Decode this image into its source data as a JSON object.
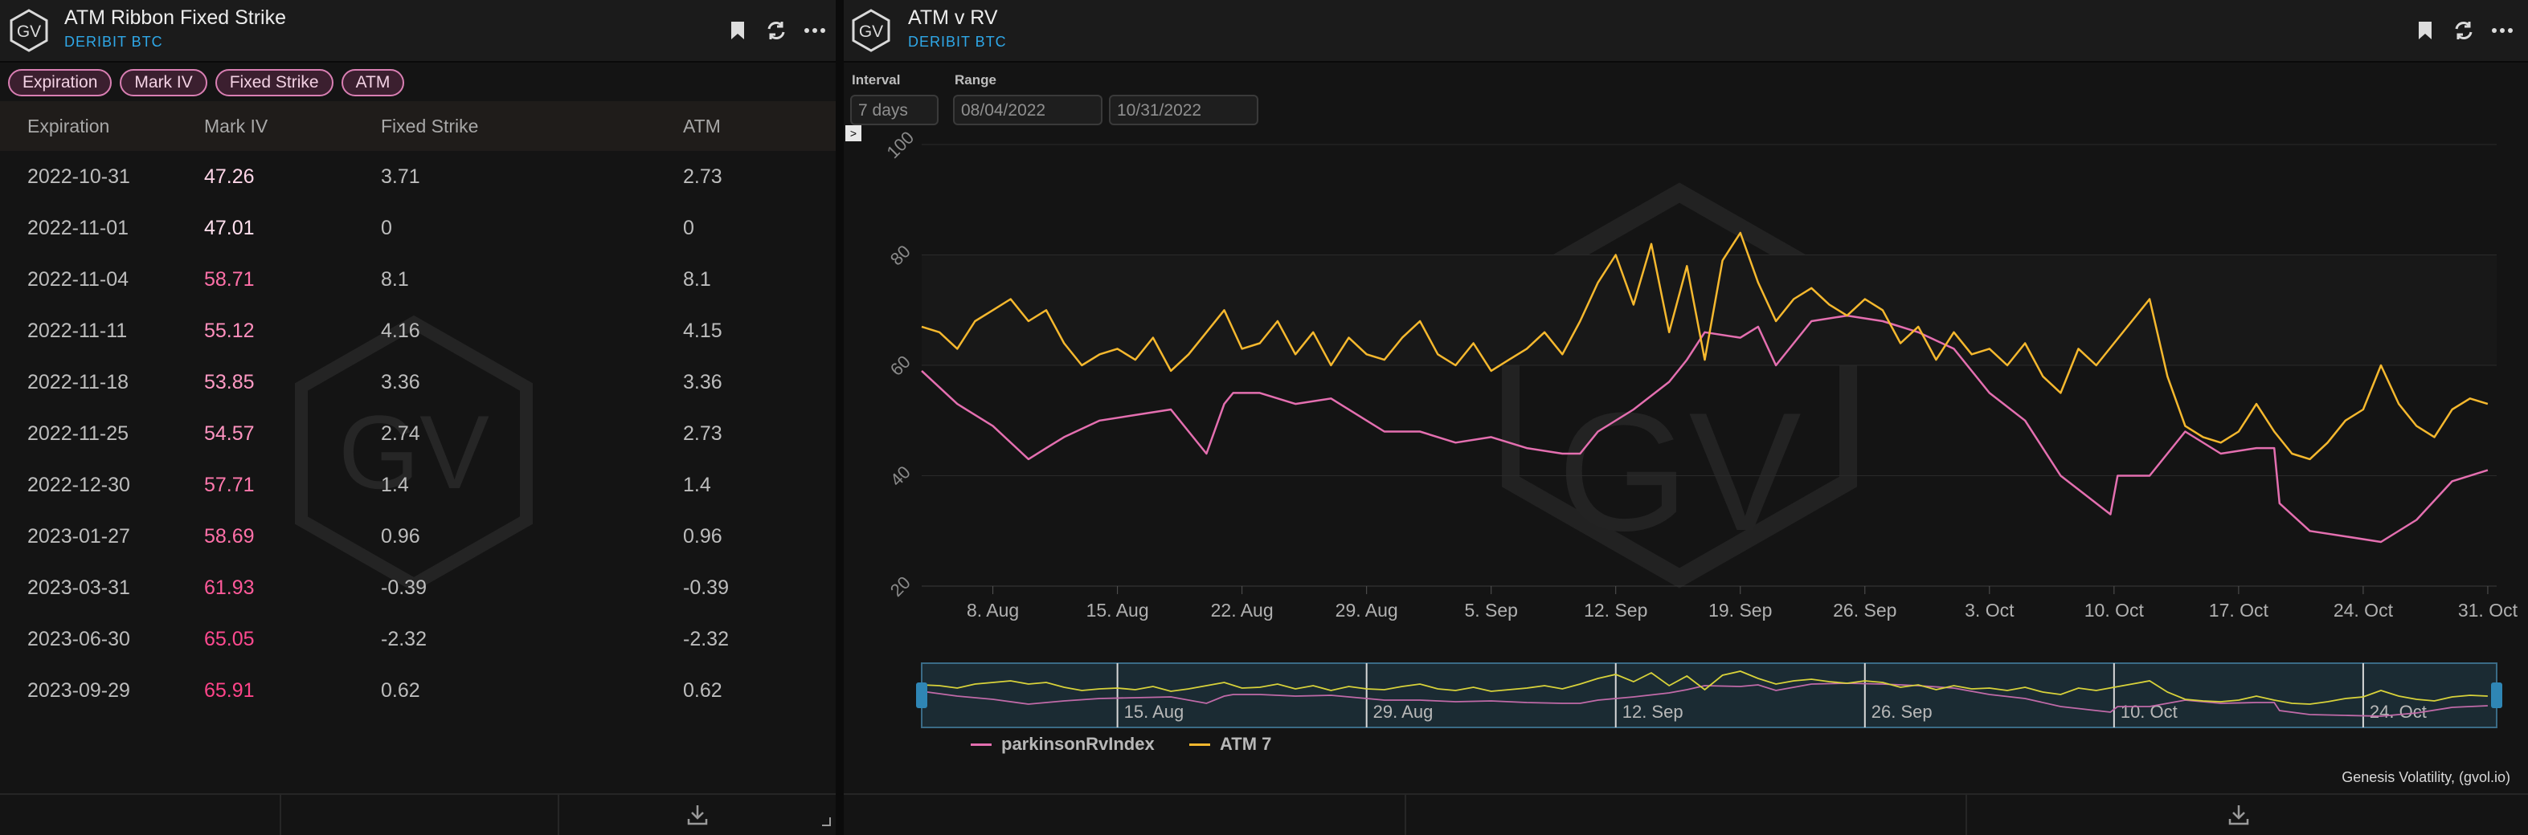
{
  "left_panel": {
    "title": "ATM Ribbon Fixed Strike",
    "subtitle": "DERIBIT BTC",
    "logo_text": "GV",
    "filters": [
      "Expiration",
      "Mark IV",
      "Fixed Strike",
      "ATM"
    ],
    "columns": [
      "Expiration",
      "Mark IV",
      "Fixed Strike",
      "ATM"
    ],
    "rows": [
      {
        "expiration": "2022-10-31",
        "mark_iv": "47.26",
        "fixed_strike": "3.71",
        "atm": "2.73",
        "iv_color": "#ffd6e8"
      },
      {
        "expiration": "2022-11-01",
        "mark_iv": "47.01",
        "fixed_strike": "0",
        "atm": "0",
        "iv_color": "#ffe0ee"
      },
      {
        "expiration": "2022-11-04",
        "mark_iv": "58.71",
        "fixed_strike": "8.1",
        "atm": "8.1",
        "iv_color": "#ff70a8"
      },
      {
        "expiration": "2022-11-11",
        "mark_iv": "55.12",
        "fixed_strike": "4.16",
        "atm": "4.15",
        "iv_color": "#ff8fbd"
      },
      {
        "expiration": "2022-11-18",
        "mark_iv": "53.85",
        "fixed_strike": "3.36",
        "atm": "3.36",
        "iv_color": "#ff9ac4"
      },
      {
        "expiration": "2022-11-25",
        "mark_iv": "54.57",
        "fixed_strike": "2.74",
        "atm": "2.73",
        "iv_color": "#ff94c0"
      },
      {
        "expiration": "2022-12-30",
        "mark_iv": "57.71",
        "fixed_strike": "1.4",
        "atm": "1.4",
        "iv_color": "#ff78ad"
      },
      {
        "expiration": "2023-01-27",
        "mark_iv": "58.69",
        "fixed_strike": "0.96",
        "atm": "0.96",
        "iv_color": "#ff70a8"
      },
      {
        "expiration": "2023-03-31",
        "mark_iv": "61.93",
        "fixed_strike": "-0.39",
        "atm": "-0.39",
        "iv_color": "#ff5a9a"
      },
      {
        "expiration": "2023-06-30",
        "mark_iv": "65.05",
        "fixed_strike": "-2.32",
        "atm": "-2.32",
        "iv_color": "#ff4a90"
      },
      {
        "expiration": "2023-09-29",
        "mark_iv": "65.91",
        "fixed_strike": "0.62",
        "atm": "0.62",
        "iv_color": "#ff4489"
      }
    ]
  },
  "right_panel": {
    "title": "ATM v RV",
    "subtitle": "DERIBIT BTC",
    "logo_text": "GV",
    "interval_label": "Interval",
    "interval_value": "7 days",
    "range_label": "Range",
    "range_start": "08/04/2022",
    "range_end": "10/31/2022",
    "collapse_glyph": ">",
    "credit": "Genesis Volatility, (gvol.io)",
    "watermark_text": "GV"
  },
  "colors": {
    "rv": "#e46fb0",
    "atm": "#f5b82e",
    "accent_blue": "#2fa8e8",
    "chip_border": "#d97fb3"
  },
  "icons": [
    "bookmark-icon",
    "refresh-icon",
    "more-icon",
    "download-icon"
  ],
  "chart_data": {
    "type": "line",
    "y_ticks": [
      "100",
      "80",
      "60",
      "40",
      "20"
    ],
    "ylim": [
      20,
      100
    ],
    "x_ticks": [
      "8. Aug",
      "15. Aug",
      "22. Aug",
      "29. Aug",
      "5. Sep",
      "12. Sep",
      "19. Sep",
      "26. Sep",
      "3. Oct",
      "10. Oct",
      "17. Oct",
      "24. Oct",
      "31. Oct"
    ],
    "x_tick_days": [
      4,
      11,
      18,
      25,
      32,
      39,
      46,
      53,
      60,
      67,
      74,
      81,
      88
    ],
    "navigator_ticks": [
      "15. Aug",
      "29. Aug",
      "12. Sep",
      "26. Sep",
      "10. Oct",
      "24. Oct"
    ],
    "navigator_tick_days": [
      11,
      25,
      39,
      53,
      67,
      81
    ],
    "xlim_days": [
      0,
      88.5
    ],
    "series": [
      {
        "name": "parkinsonRvIndex",
        "color": "#e46fb0",
        "days": [
          0,
          2,
          4,
          6,
          7,
          8,
          10,
          12,
          14,
          16,
          17,
          17.5,
          19,
          21,
          23,
          25,
          26,
          28,
          30,
          32,
          34,
          36,
          37,
          38,
          40,
          42,
          43,
          44,
          46,
          47,
          48,
          50,
          52,
          54,
          56,
          58,
          60,
          62,
          64,
          66,
          66.8,
          67.2,
          69,
          71,
          73,
          75,
          76,
          76.3,
          78,
          80,
          82,
          84,
          86,
          88
        ],
        "values": [
          59,
          53,
          49,
          43,
          45,
          47,
          50,
          51,
          52,
          44,
          53,
          55,
          55,
          53,
          54,
          50,
          48,
          48,
          46,
          47,
          45,
          44,
          44,
          48,
          52,
          57,
          61,
          66,
          65,
          67,
          60,
          68,
          69,
          68,
          66,
          63,
          55,
          50,
          40,
          35,
          33,
          40,
          40,
          48,
          44,
          45,
          45,
          35,
          30,
          29,
          28,
          32,
          39,
          41
        ]
      },
      {
        "name": "ATM 7",
        "color": "#f5b82e",
        "days": [
          0,
          1,
          2,
          3,
          4,
          5,
          6,
          7,
          8,
          9,
          10,
          11,
          12,
          13,
          14,
          15,
          16,
          17,
          18,
          19,
          20,
          21,
          22,
          23,
          24,
          25,
          26,
          27,
          28,
          29,
          30,
          31,
          32,
          33,
          34,
          35,
          36,
          37,
          38,
          39,
          40,
          41,
          42,
          43,
          44,
          45,
          46,
          47,
          48,
          49,
          50,
          51,
          52,
          53,
          54,
          55,
          56,
          57,
          58,
          59,
          60,
          61,
          62,
          63,
          64,
          65,
          66,
          67,
          68,
          69,
          70,
          71,
          72,
          73,
          74,
          75,
          76,
          77,
          78,
          79,
          80,
          81,
          82,
          83,
          84,
          85,
          86,
          87,
          88
        ],
        "values": [
          67,
          66,
          63,
          68,
          70,
          72,
          68,
          70,
          64,
          60,
          62,
          63,
          61,
          65,
          59,
          62,
          66,
          70,
          63,
          64,
          68,
          62,
          66,
          60,
          65,
          62,
          61,
          65,
          68,
          62,
          60,
          64,
          59,
          61,
          63,
          66,
          62,
          68,
          75,
          80,
          71,
          82,
          66,
          78,
          61,
          79,
          84,
          75,
          68,
          72,
          74,
          71,
          69,
          72,
          70,
          64,
          67,
          61,
          66,
          62,
          63,
          60,
          64,
          58,
          55,
          63,
          60,
          64,
          68,
          72,
          58,
          49,
          47,
          46,
          48,
          53,
          48,
          44,
          43,
          46,
          50,
          52,
          60,
          53,
          49,
          47,
          52,
          54,
          53
        ]
      }
    ]
  }
}
